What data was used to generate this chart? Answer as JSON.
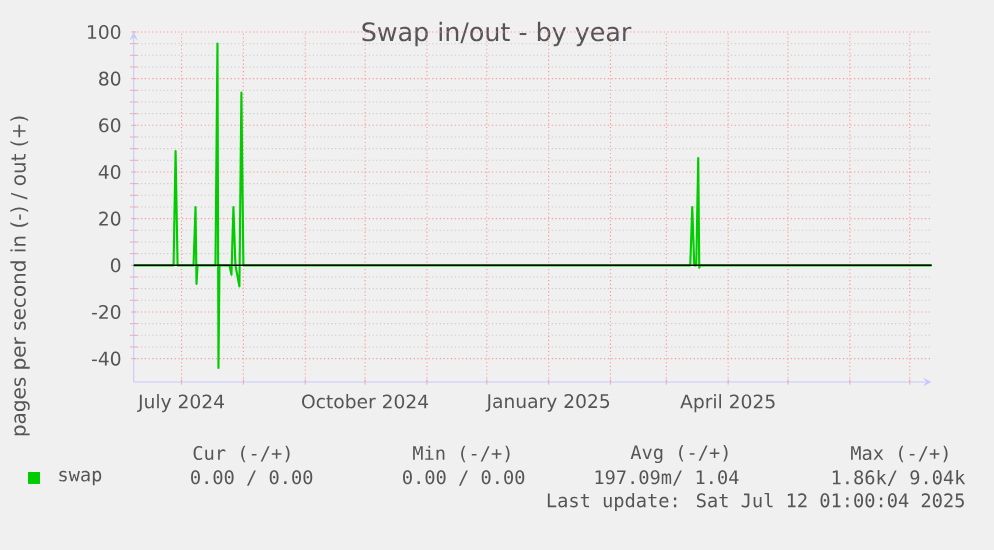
{
  "chart_data": {
    "type": "line",
    "title": "Swap in/out - by year",
    "ylabel": "pages per second in (-) / out (+)",
    "x": [
      "2024-06-07",
      "2024-06-27",
      "2024-06-28",
      "2024-06-29",
      "2024-07-07",
      "2024-07-08",
      "2024-07-08T12:00",
      "2024-07-09",
      "2024-07-18",
      "2024-07-19",
      "2024-07-19T12:00",
      "2024-07-20",
      "2024-07-25",
      "2024-07-26",
      "2024-07-27",
      "2024-07-28",
      "2024-07-30",
      "2024-07-31",
      "2024-08-01",
      "2025-03-13",
      "2025-03-14",
      "2025-03-15",
      "2025-03-16",
      "2025-03-17",
      "2025-03-17T12:00",
      "2025-03-18",
      "2025-07-12"
    ],
    "series": [
      {
        "name": "swap",
        "color": "#00cc00",
        "values": [
          0,
          0,
          49,
          0,
          0,
          25,
          -8,
          0,
          0,
          95,
          -44,
          0,
          0,
          -4,
          25,
          0,
          -9,
          74,
          0,
          0,
          25,
          0,
          0,
          46,
          -1,
          0,
          0
        ]
      }
    ],
    "xlim": [
      "2024-06-07",
      "2025-07-12"
    ],
    "xticks": [
      {
        "value": "2024-07-01",
        "label": "July 2024"
      },
      {
        "value": "2024-08-01",
        "label": null
      },
      {
        "value": "2024-09-01",
        "label": null
      },
      {
        "value": "2024-10-01",
        "label": "October 2024"
      },
      {
        "value": "2024-11-01",
        "label": null
      },
      {
        "value": "2024-12-01",
        "label": null
      },
      {
        "value": "2025-01-01",
        "label": "January 2025"
      },
      {
        "value": "2025-02-01",
        "label": null
      },
      {
        "value": "2025-03-01",
        "label": null
      },
      {
        "value": "2025-04-01",
        "label": "April 2025"
      },
      {
        "value": "2025-05-01",
        "label": null
      },
      {
        "value": "2025-06-01",
        "label": null
      },
      {
        "value": "2025-07-01",
        "label": null
      }
    ],
    "ylim": [
      -50,
      100
    ],
    "yticks": [
      -40,
      -20,
      0,
      20,
      40,
      60,
      80,
      100
    ],
    "grid": true,
    "legend": "bottom",
    "ref_lines": [
      {
        "axis": "y",
        "value": 0,
        "color": "#000000"
      }
    ],
    "annotations": [
      "Cur (-/+)",
      "Min (-/+)",
      "Avg (-/+)",
      "Max (-/+)",
      "0.00 /   0.00",
      "0.00 /   0.00",
      "197.09m/  1.04",
      "1.86k/  9.04k",
      "Last update: Sat Jul 12 01:00:04 2025"
    ]
  }
}
